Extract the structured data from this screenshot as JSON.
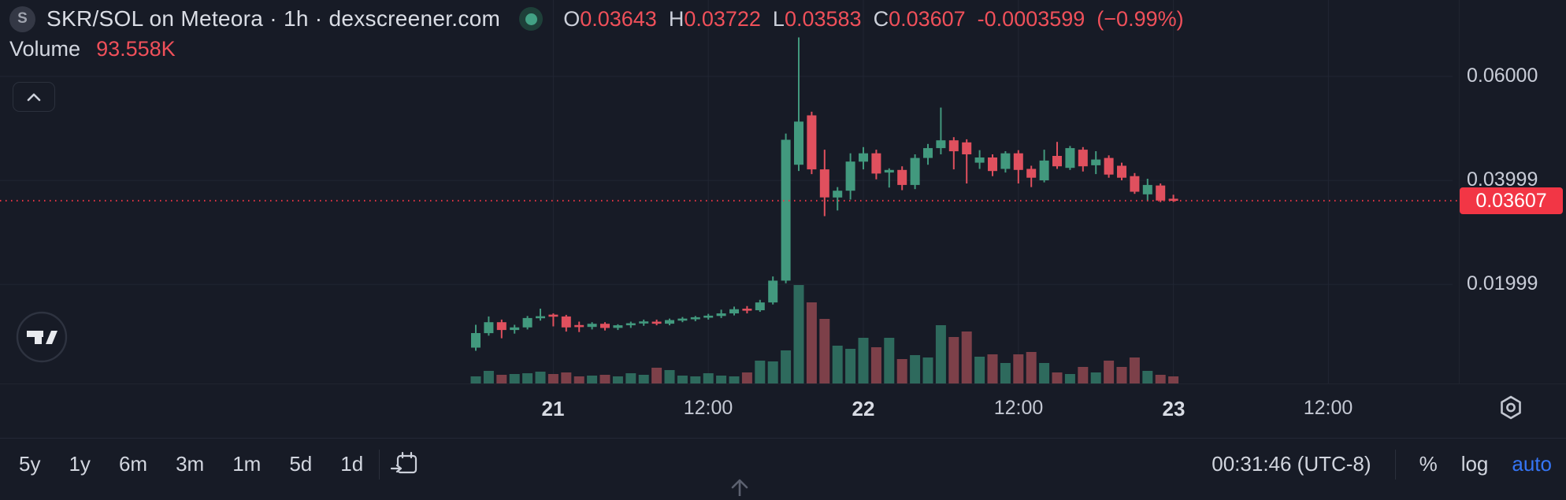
{
  "legend": {
    "symbol_badge": "S",
    "title": "SKR/SOL on Meteora · 1h · dexscreener.com",
    "ohlc": [
      {
        "label": "O",
        "value": "0.03643"
      },
      {
        "label": "H",
        "value": "0.03722"
      },
      {
        "label": "L",
        "value": "0.03583"
      },
      {
        "label": "C",
        "value": "0.03607"
      }
    ],
    "change": "-0.0003599",
    "change_pct": "(−0.99%)",
    "volume_label": "Volume",
    "volume_value": "93.558K"
  },
  "chart_data": {
    "type": "candlestick_with_volume",
    "pair": "SKR/SOL",
    "venue": "Meteora",
    "interval": "1h",
    "up_color": "#42997e",
    "down_color": "#e0505e",
    "volume_up_color": "#2e6a5d",
    "volume_down_color": "#7d4049",
    "grid_color": "#212633",
    "price_line": {
      "value": 0.03607,
      "style": "dotted",
      "color": "#f23645"
    },
    "y_axis": {
      "labels": [
        "0.06000",
        "0.03999",
        "0.01999"
      ],
      "values": [
        0.06,
        0.03999,
        0.01999
      ]
    },
    "x_axis": {
      "labels": [
        {
          "text": "21",
          "bold": true,
          "candle_index": 6
        },
        {
          "text": "12:00",
          "bold": false,
          "candle_index": 18
        },
        {
          "text": "22",
          "bold": true,
          "candle_index": 30
        },
        {
          "text": "12:00",
          "bold": false,
          "candle_index": 42
        },
        {
          "text": "23",
          "bold": true,
          "candle_index": 54
        },
        {
          "text": "12:00",
          "bold": false,
          "candle_index": 66
        }
      ]
    },
    "volume_axis": "relative-unlabeled",
    "candles_format": [
      "open",
      "high",
      "low",
      "close",
      "volume_relative"
    ],
    "candles": [
      [
        0.0078,
        0.0122,
        0.0072,
        0.0106,
        9
      ],
      [
        0.0106,
        0.0138,
        0.0101,
        0.0127,
        16
      ],
      [
        0.0127,
        0.0132,
        0.0096,
        0.0112,
        11
      ],
      [
        0.0112,
        0.0122,
        0.0105,
        0.0117,
        12
      ],
      [
        0.0117,
        0.0139,
        0.0113,
        0.0135,
        13
      ],
      [
        0.0135,
        0.0153,
        0.013,
        0.0138,
        15
      ],
      [
        0.0141,
        0.0144,
        0.0119,
        0.0138,
        12
      ],
      [
        0.0138,
        0.0141,
        0.0109,
        0.0117,
        14
      ],
      [
        0.0121,
        0.0128,
        0.0108,
        0.0118,
        9
      ],
      [
        0.0118,
        0.0127,
        0.0113,
        0.0124,
        10
      ],
      [
        0.0124,
        0.0127,
        0.0111,
        0.0116,
        11
      ],
      [
        0.0116,
        0.0123,
        0.0112,
        0.0121,
        9
      ],
      [
        0.0121,
        0.0128,
        0.0116,
        0.0125,
        13
      ],
      [
        0.0125,
        0.0132,
        0.012,
        0.0128,
        11
      ],
      [
        0.0128,
        0.0132,
        0.0121,
        0.0124,
        20
      ],
      [
        0.0124,
        0.0134,
        0.0121,
        0.0131,
        17
      ],
      [
        0.0131,
        0.0137,
        0.0127,
        0.0133,
        10
      ],
      [
        0.0133,
        0.0139,
        0.0129,
        0.0136,
        9
      ],
      [
        0.0136,
        0.0143,
        0.0132,
        0.0139,
        13
      ],
      [
        0.0139,
        0.0151,
        0.0135,
        0.0144,
        10
      ],
      [
        0.0144,
        0.0157,
        0.014,
        0.0152,
        9
      ],
      [
        0.0152,
        0.0158,
        0.0144,
        0.015,
        14
      ],
      [
        0.015,
        0.017,
        0.0147,
        0.0165,
        29
      ],
      [
        0.0165,
        0.0215,
        0.0161,
        0.0207,
        28
      ],
      [
        0.0207,
        0.049,
        0.0202,
        0.0478,
        42
      ],
      [
        0.043,
        0.0675,
        0.0418,
        0.0513,
        125
      ],
      [
        0.0525,
        0.0532,
        0.0412,
        0.0421,
        103
      ],
      [
        0.0421,
        0.0459,
        0.0331,
        0.0367,
        82
      ],
      [
        0.0367,
        0.0387,
        0.0342,
        0.038,
        48
      ],
      [
        0.038,
        0.0452,
        0.0363,
        0.0436,
        44
      ],
      [
        0.0436,
        0.0464,
        0.0421,
        0.0452,
        58
      ],
      [
        0.0452,
        0.0459,
        0.0402,
        0.0413,
        46
      ],
      [
        0.0415,
        0.0423,
        0.0386,
        0.042,
        58
      ],
      [
        0.042,
        0.0427,
        0.0381,
        0.0391,
        31
      ],
      [
        0.0391,
        0.045,
        0.0383,
        0.0443,
        36
      ],
      [
        0.0443,
        0.047,
        0.043,
        0.0462,
        33
      ],
      [
        0.0462,
        0.054,
        0.045,
        0.0477,
        74
      ],
      [
        0.0477,
        0.0483,
        0.0421,
        0.0456,
        59
      ],
      [
        0.0473,
        0.0479,
        0.0394,
        0.045,
        66
      ],
      [
        0.0434,
        0.0458,
        0.0422,
        0.0444,
        34
      ],
      [
        0.0444,
        0.045,
        0.0408,
        0.0418,
        37
      ],
      [
        0.0422,
        0.0456,
        0.0415,
        0.0452,
        26
      ],
      [
        0.0452,
        0.0458,
        0.0394,
        0.042,
        37
      ],
      [
        0.0422,
        0.0428,
        0.0387,
        0.0405,
        40
      ],
      [
        0.04,
        0.0459,
        0.0396,
        0.0438,
        26
      ],
      [
        0.0447,
        0.0474,
        0.0422,
        0.0427,
        14
      ],
      [
        0.0424,
        0.0466,
        0.042,
        0.0462,
        12
      ],
      [
        0.0459,
        0.0464,
        0.0417,
        0.0427,
        21
      ],
      [
        0.0429,
        0.0456,
        0.0412,
        0.044,
        14
      ],
      [
        0.0443,
        0.0448,
        0.0405,
        0.0411,
        29
      ],
      [
        0.0428,
        0.0434,
        0.04,
        0.0405,
        21
      ],
      [
        0.0408,
        0.0414,
        0.0374,
        0.0378,
        33
      ],
      [
        0.0373,
        0.0403,
        0.036,
        0.0391,
        16
      ],
      [
        0.039,
        0.0394,
        0.0358,
        0.0361,
        11
      ],
      [
        0.03643,
        0.03722,
        0.03583,
        0.03607,
        9
      ]
    ]
  },
  "price_axis": {
    "current_badge": "0.03607"
  },
  "toolbar": {
    "ranges": [
      "5y",
      "1y",
      "6m",
      "3m",
      "1m",
      "5d",
      "1d"
    ],
    "clock": "00:31:46 (UTC-8)",
    "percent": "%",
    "log": "log",
    "auto": "auto"
  },
  "colors": {
    "background": "#171b26",
    "accent_blue": "#3575f5",
    "badge_red": "#f23645",
    "text_red": "#f0505a",
    "up_green": "#42997e",
    "down_red": "#e0505e"
  }
}
